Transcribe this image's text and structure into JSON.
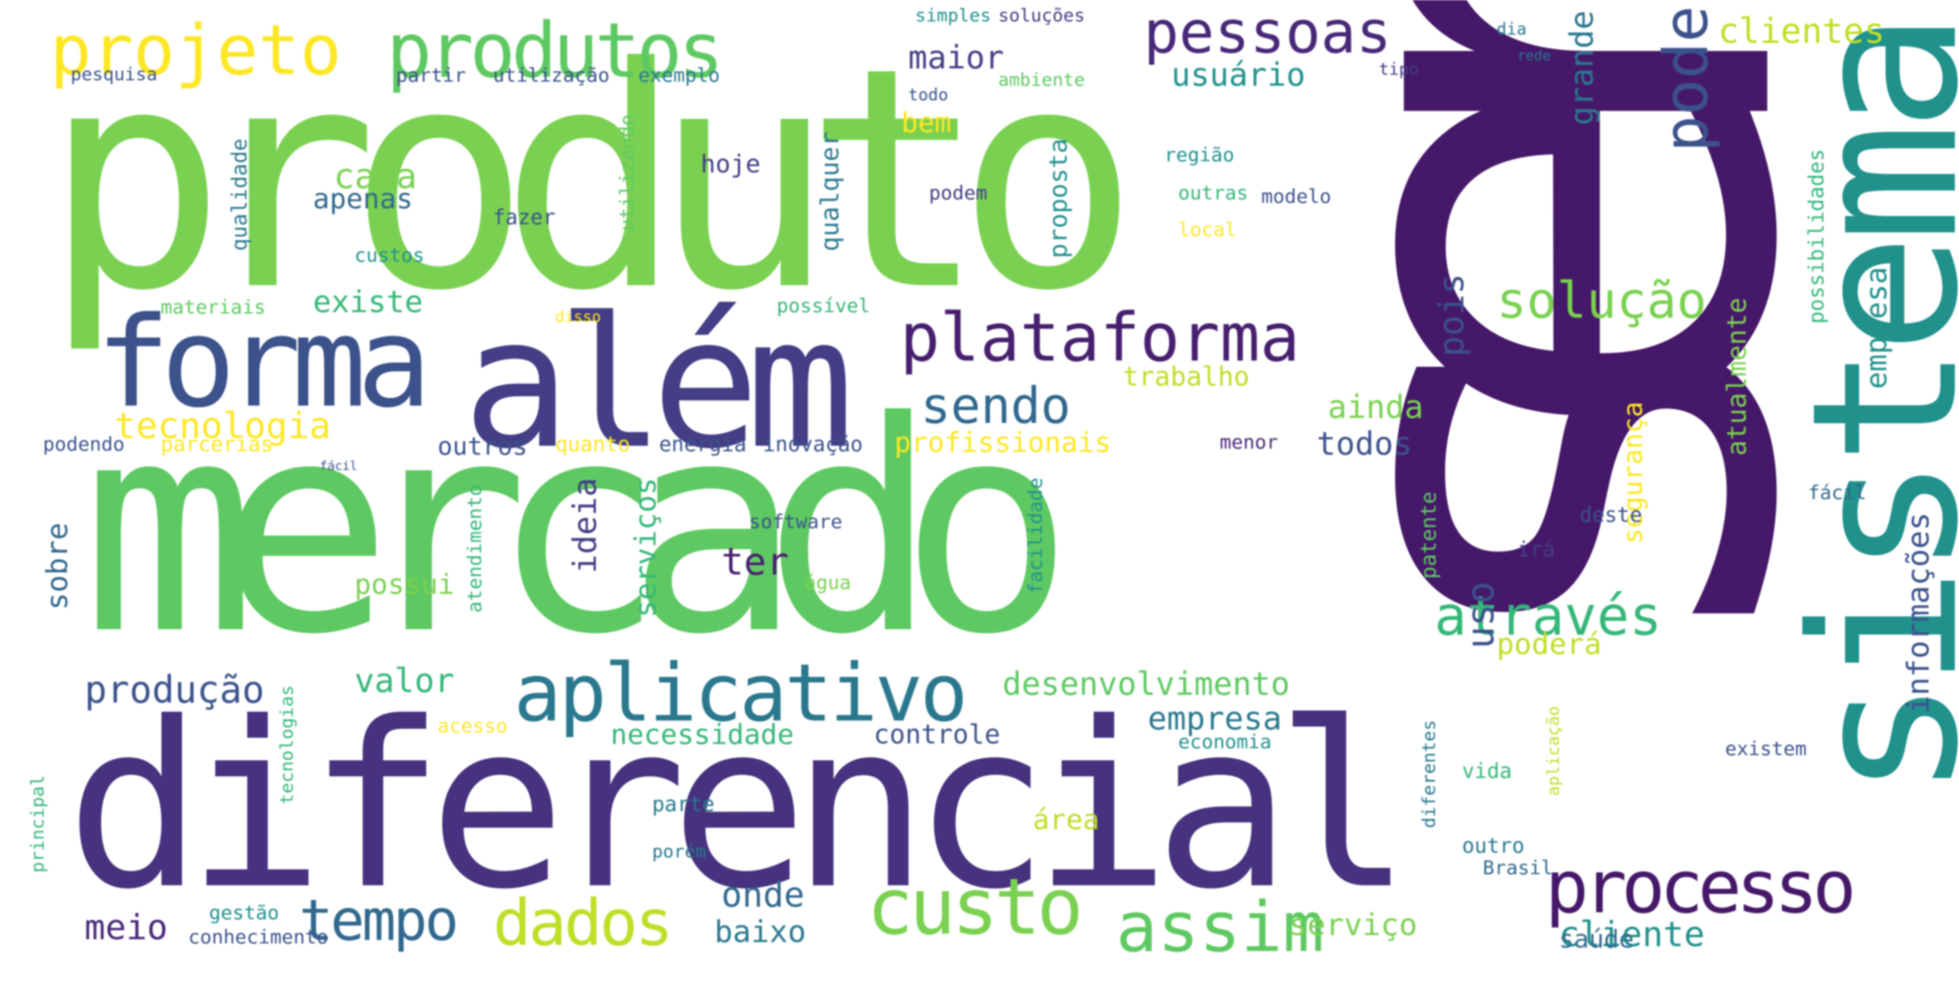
{
  "words": [
    {
      "text": "ser",
      "color": "#461869"
    },
    {
      "text": "produto",
      "color": "#7ad151"
    },
    {
      "text": "mercado",
      "color": "#5ec962"
    },
    {
      "text": "diferencial",
      "color": "#46327e"
    },
    {
      "text": "sistema",
      "color": "#21918c"
    },
    {
      "text": "além",
      "color": "#433e85"
    },
    {
      "text": "forma",
      "color": "#3b528b"
    },
    {
      "text": "produtos",
      "color": "#5ec962"
    },
    {
      "text": "projeto",
      "color": "#fde725"
    },
    {
      "text": "pessoas",
      "color": "#482878"
    },
    {
      "text": "plataforma",
      "color": "#481f70"
    },
    {
      "text": "aplicativo",
      "color": "#2a788e"
    },
    {
      "text": "processo",
      "color": "#461869"
    },
    {
      "text": "custo",
      "color": "#7ad151"
    },
    {
      "text": "assim",
      "color": "#5ec962"
    },
    {
      "text": "dados",
      "color": "#bddf26"
    },
    {
      "text": "tempo",
      "color": "#31688e"
    },
    {
      "text": "pode",
      "color": "#3b528b"
    },
    {
      "text": "solução",
      "color": "#7ad151"
    },
    {
      "text": "através",
      "color": "#35b779"
    },
    {
      "text": "sendo",
      "color": "#31688e"
    },
    {
      "text": "tecnologia",
      "color": "#fde725"
    },
    {
      "text": "produção",
      "color": "#3b528b"
    },
    {
      "text": "desenvolvimento",
      "color": "#5ec962"
    },
    {
      "text": "empresa",
      "color": "#2a788e"
    },
    {
      "text": "cliente",
      "color": "#21918c"
    },
    {
      "text": "clientes",
      "color": "#bddf26"
    },
    {
      "text": "usuário",
      "color": "#21918c"
    },
    {
      "text": "maior",
      "color": "#433e85"
    },
    {
      "text": "informações",
      "color": "#3b528b"
    },
    {
      "text": "empresas",
      "color": "#21918c"
    },
    {
      "text": "grande",
      "color": "#2a788e"
    },
    {
      "text": "ainda",
      "color": "#7ad151"
    },
    {
      "text": "todos",
      "color": "#3b528b"
    },
    {
      "text": "pois",
      "color": "#3b528b"
    },
    {
      "text": "profissionais",
      "color": "#fde725"
    },
    {
      "text": "uso",
      "color": "#3b528b"
    },
    {
      "text": "poderá",
      "color": "#bddf26"
    },
    {
      "text": "segurança",
      "color": "#fde725"
    },
    {
      "text": "atualmente",
      "color": "#7ad151"
    },
    {
      "text": "possibilidades",
      "color": "#35b779"
    },
    {
      "text": "ideia",
      "color": "#433e85"
    },
    {
      "text": "ter",
      "color": "#481f70"
    },
    {
      "text": "serviços",
      "color": "#35b779"
    },
    {
      "text": "serviço",
      "color": "#7ad151"
    },
    {
      "text": "baixo",
      "color": "#2a788e"
    },
    {
      "text": "onde",
      "color": "#31688e"
    },
    {
      "text": "meio",
      "color": "#482878"
    },
    {
      "text": "valor",
      "color": "#35b779"
    },
    {
      "text": "sobre",
      "color": "#31688e"
    },
    {
      "text": "existe",
      "color": "#35b779"
    },
    {
      "text": "cada",
      "color": "#7ad151"
    },
    {
      "text": "apenas",
      "color": "#31688e"
    },
    {
      "text": "bem",
      "color": "#fde725"
    },
    {
      "text": "qualquer",
      "color": "#2a788e"
    },
    {
      "text": "proposta",
      "color": "#21918c"
    },
    {
      "text": "trabalho",
      "color": "#bddf26"
    },
    {
      "text": "controle",
      "color": "#3b528b"
    },
    {
      "text": "necessidade",
      "color": "#35b779"
    },
    {
      "text": "possui",
      "color": "#7ad151"
    },
    {
      "text": "área",
      "color": "#bddf26"
    },
    {
      "text": "saúde",
      "color": "#31688e"
    },
    {
      "text": "parte",
      "color": "#2a788e"
    },
    {
      "text": "outro",
      "color": "#2a788e"
    },
    {
      "text": "vida",
      "color": "#35b779"
    },
    {
      "text": "deste",
      "color": "#3b528b"
    },
    {
      "text": "patente",
      "color": "#5ec962"
    },
    {
      "text": "irá",
      "color": "#433e85"
    },
    {
      "text": "fácil",
      "color": "#31688e"
    },
    {
      "text": "outros",
      "color": "#3b528b"
    },
    {
      "text": "quanto",
      "color": "#fde725"
    },
    {
      "text": "energia",
      "color": "#3b528b"
    },
    {
      "text": "inovação",
      "color": "#3b528b"
    },
    {
      "text": "parcerias",
      "color": "#fde725"
    },
    {
      "text": "podendo",
      "color": "#3b528b"
    },
    {
      "text": "qualidade",
      "color": "#2a788e"
    },
    {
      "text": "utilizando",
      "color": "#5ec962"
    },
    {
      "text": "hoje",
      "color": "#433e85"
    },
    {
      "text": "podem",
      "color": "#433e85"
    },
    {
      "text": "fazer",
      "color": "#3b528b"
    },
    {
      "text": "custos",
      "color": "#21918c"
    },
    {
      "text": "materiais",
      "color": "#5ec962"
    },
    {
      "text": "região",
      "color": "#21918c"
    },
    {
      "text": "outras",
      "color": "#35b779"
    },
    {
      "text": "modelo",
      "color": "#3b528b"
    },
    {
      "text": "local",
      "color": "#fde725"
    },
    {
      "text": "software",
      "color": "#3b528b"
    },
    {
      "text": "água",
      "color": "#7ad151"
    },
    {
      "text": "possível",
      "color": "#35b779"
    },
    {
      "text": "atendimento",
      "color": "#35b779"
    },
    {
      "text": "facilidade",
      "color": "#21918c"
    },
    {
      "text": "menor",
      "color": "#482878"
    },
    {
      "text": "economia",
      "color": "#21918c"
    },
    {
      "text": "acesso",
      "color": "#fde725"
    },
    {
      "text": "conhecimento",
      "color": "#3b528b"
    },
    {
      "text": "gestão",
      "color": "#21918c"
    },
    {
      "text": "porém",
      "color": "#2a788e"
    },
    {
      "text": "principal",
      "color": "#35b779"
    },
    {
      "text": "tecnologias",
      "color": "#35b779"
    },
    {
      "text": "Brasil",
      "color": "#31688e"
    },
    {
      "text": "existem",
      "color": "#3b528b"
    },
    {
      "text": "diferentes",
      "color": "#2a788e"
    },
    {
      "text": "aplicação",
      "color": "#bddf26"
    },
    {
      "text": "simples",
      "color": "#21918c"
    },
    {
      "text": "soluções",
      "color": "#433e85"
    },
    {
      "text": "partir",
      "color": "#3b528b"
    },
    {
      "text": "utilização",
      "color": "#3b528b"
    },
    {
      "text": "exemplo",
      "color": "#2a788e"
    },
    {
      "text": "pesquisa",
      "color": "#3b528b"
    },
    {
      "text": "ambiente",
      "color": "#5ec962"
    },
    {
      "text": "todo",
      "color": "#3b528b"
    },
    {
      "text": "tipo",
      "color": "#433e85"
    },
    {
      "text": "dia",
      "color": "#2a788e"
    },
    {
      "text": "rede",
      "color": "#2a788e"
    },
    {
      "text": "disso",
      "color": "#fde725"
    },
    {
      "text": "fácil",
      "color": "#3b528b"
    }
  ]
}
